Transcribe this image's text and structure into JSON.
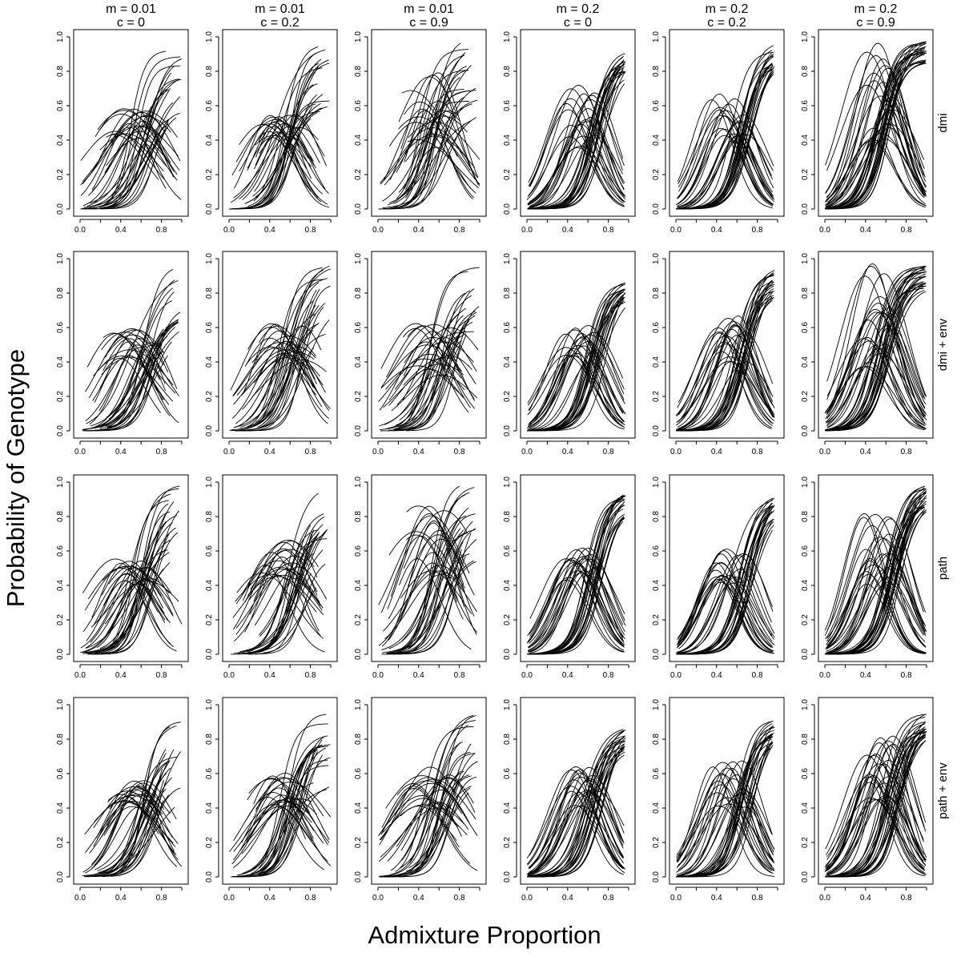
{
  "figure": {
    "ylabel": "Probability of Genotype",
    "xlabel": "Admixture Proportion"
  },
  "chart_data": {
    "type": "line",
    "layout": "small-multiples 4 rows x 6 columns",
    "columns": [
      {
        "m_label": "m = 0.01",
        "c_label": "c = 0",
        "m": 0.01,
        "c": 0
      },
      {
        "m_label": "m = 0.01",
        "c_label": "c = 0.2",
        "m": 0.01,
        "c": 0.2
      },
      {
        "m_label": "m = 0.01",
        "c_label": "c = 0.9",
        "m": 0.01,
        "c": 0.9
      },
      {
        "m_label": "m = 0.2",
        "c_label": "c = 0",
        "m": 0.2,
        "c": 0
      },
      {
        "m_label": "m = 0.2",
        "c_label": "c = 0.2",
        "m": 0.2,
        "c": 0.2
      },
      {
        "m_label": "m = 0.2",
        "c_label": "c = 0.9",
        "m": 0.2,
        "c": 0.9
      }
    ],
    "rows": [
      "dmi",
      "dmi + env",
      "path",
      "path + env"
    ],
    "x_ticks": [
      "0.0",
      "0.4",
      "0.8"
    ],
    "y_ticks": [
      "0.0",
      "0.2",
      "0.4",
      "0.6",
      "0.8",
      "1.0"
    ],
    "xlim": [
      0,
      1
    ],
    "ylim": [
      0,
      1
    ],
    "grid": false,
    "legend": "none",
    "line_color": "#000000",
    "curve_families": {
      "hump": "heterozygote genotype frequency, peaks near admixture 0.4-0.6",
      "rising": "homozygote genotype frequency, sigmoid rising toward 1 at admixture 1"
    },
    "panels": [
      {
        "row": 0,
        "col": 0,
        "x_range": [
          0.0,
          1.0
        ],
        "hump_peaks_approx": [
          0.45,
          0.6
        ],
        "rising_midpoint_approx": 0.6,
        "max_rising_value_approx": 0.93
      },
      {
        "row": 0,
        "col": 1,
        "x_range": [
          0.0,
          1.0
        ],
        "hump_peaks_approx": [
          0.45,
          0.55
        ],
        "rising_midpoint_approx": 0.55,
        "max_rising_value_approx": 0.99
      },
      {
        "row": 0,
        "col": 2,
        "x_range": [
          0.0,
          1.0
        ],
        "hump_peaks_approx": [
          0.4,
          0.8
        ],
        "rising_midpoint_approx": 0.55,
        "max_rising_value_approx": 1.0
      },
      {
        "row": 0,
        "col": 3,
        "x_range": [
          0.0,
          0.97
        ],
        "hump_peaks_approx": [
          0.4,
          0.73
        ],
        "rising_midpoint_approx": 0.65,
        "max_rising_value_approx": 0.94
      },
      {
        "row": 0,
        "col": 4,
        "x_range": [
          0.0,
          0.97
        ],
        "hump_peaks_approx": [
          0.45,
          0.68
        ],
        "rising_midpoint_approx": 0.65,
        "max_rising_value_approx": 0.97
      },
      {
        "row": 0,
        "col": 5,
        "x_range": [
          0.0,
          1.0
        ],
        "hump_peaks_approx": [
          0.4,
          0.97
        ],
        "rising_midpoint_approx": 0.55,
        "max_rising_value_approx": 0.99
      },
      {
        "row": 1,
        "col": 0,
        "x_range": [
          0.0,
          1.0
        ],
        "hump_peaks_approx": [
          0.45,
          0.6
        ],
        "rising_midpoint_approx": 0.65,
        "max_rising_value_approx": 0.99
      },
      {
        "row": 1,
        "col": 1,
        "x_range": [
          0.0,
          1.0
        ],
        "hump_peaks_approx": [
          0.45,
          0.64
        ],
        "rising_midpoint_approx": 0.6,
        "max_rising_value_approx": 0.99
      },
      {
        "row": 1,
        "col": 2,
        "x_range": [
          0.0,
          1.0
        ],
        "hump_peaks_approx": [
          0.35,
          0.64
        ],
        "rising_midpoint_approx": 0.6,
        "max_rising_value_approx": 0.98
      },
      {
        "row": 1,
        "col": 3,
        "x_range": [
          0.0,
          0.97
        ],
        "hump_peaks_approx": [
          0.45,
          0.62
        ],
        "rising_midpoint_approx": 0.65,
        "max_rising_value_approx": 0.9
      },
      {
        "row": 1,
        "col": 4,
        "x_range": [
          0.0,
          0.97
        ],
        "hump_peaks_approx": [
          0.45,
          0.67
        ],
        "rising_midpoint_approx": 0.65,
        "max_rising_value_approx": 0.95
      },
      {
        "row": 1,
        "col": 5,
        "x_range": [
          0.0,
          1.0
        ],
        "hump_peaks_approx": [
          0.4,
          0.98
        ],
        "rising_midpoint_approx": 0.55,
        "max_rising_value_approx": 0.97
      },
      {
        "row": 2,
        "col": 0,
        "x_range": [
          0.0,
          1.0
        ],
        "hump_peaks_approx": [
          0.45,
          0.56
        ],
        "rising_midpoint_approx": 0.6,
        "max_rising_value_approx": 0.99
      },
      {
        "row": 2,
        "col": 1,
        "x_range": [
          0.0,
          1.0
        ],
        "hump_peaks_approx": [
          0.5,
          0.67
        ],
        "rising_midpoint_approx": 0.65,
        "max_rising_value_approx": 0.98
      },
      {
        "row": 2,
        "col": 2,
        "x_range": [
          0.0,
          1.0
        ],
        "hump_peaks_approx": [
          0.5,
          0.87
        ],
        "rising_midpoint_approx": 0.6,
        "max_rising_value_approx": 1.0
      },
      {
        "row": 2,
        "col": 3,
        "x_range": [
          0.0,
          0.97
        ],
        "hump_peaks_approx": [
          0.45,
          0.63
        ],
        "rising_midpoint_approx": 0.65,
        "max_rising_value_approx": 0.96
      },
      {
        "row": 2,
        "col": 4,
        "x_range": [
          0.0,
          0.97
        ],
        "hump_peaks_approx": [
          0.45,
          0.65
        ],
        "rising_midpoint_approx": 0.65,
        "max_rising_value_approx": 0.95
      },
      {
        "row": 2,
        "col": 5,
        "x_range": [
          0.0,
          1.0
        ],
        "hump_peaks_approx": [
          0.45,
          0.82
        ],
        "rising_midpoint_approx": 0.65,
        "max_rising_value_approx": 1.0
      },
      {
        "row": 3,
        "col": 0,
        "x_range": [
          0.0,
          1.0
        ],
        "hump_peaks_approx": [
          0.45,
          0.56
        ],
        "rising_midpoint_approx": 0.65,
        "max_rising_value_approx": 0.97
      },
      {
        "row": 3,
        "col": 1,
        "x_range": [
          0.0,
          1.0
        ],
        "hump_peaks_approx": [
          0.45,
          0.61
        ],
        "rising_midpoint_approx": 0.6,
        "max_rising_value_approx": 0.97
      },
      {
        "row": 3,
        "col": 2,
        "x_range": [
          0.0,
          1.0
        ],
        "hump_peaks_approx": [
          0.45,
          0.64
        ],
        "rising_midpoint_approx": 0.6,
        "max_rising_value_approx": 0.99
      },
      {
        "row": 3,
        "col": 3,
        "x_range": [
          0.0,
          0.97
        ],
        "hump_peaks_approx": [
          0.45,
          0.65
        ],
        "rising_midpoint_approx": 0.65,
        "max_rising_value_approx": 0.89
      },
      {
        "row": 3,
        "col": 4,
        "x_range": [
          0.0,
          0.97
        ],
        "hump_peaks_approx": [
          0.45,
          0.68
        ],
        "rising_midpoint_approx": 0.65,
        "max_rising_value_approx": 0.94
      },
      {
        "row": 3,
        "col": 5,
        "x_range": [
          0.0,
          1.0
        ],
        "hump_peaks_approx": [
          0.45,
          0.83
        ],
        "rising_midpoint_approx": 0.65,
        "max_rising_value_approx": 0.97
      }
    ]
  }
}
